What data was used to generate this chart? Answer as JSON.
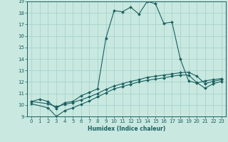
{
  "xlabel": "Humidex (Indice chaleur)",
  "ylabel": "",
  "xlim": [
    -0.5,
    23.5
  ],
  "ylim": [
    9,
    19
  ],
  "xticks": [
    0,
    1,
    2,
    3,
    4,
    5,
    6,
    7,
    8,
    9,
    10,
    11,
    12,
    13,
    14,
    15,
    16,
    17,
    18,
    19,
    20,
    21,
    22,
    23
  ],
  "yticks": [
    9,
    10,
    11,
    12,
    13,
    14,
    15,
    16,
    17,
    18,
    19
  ],
  "background_color": "#c8e8e0",
  "grid_color": "#a8d4cc",
  "line_color": "#1a6060",
  "line1_x": [
    0,
    1,
    2,
    3,
    4,
    5,
    6,
    7,
    8,
    9,
    10,
    11,
    12,
    13,
    14,
    15,
    16,
    17,
    18,
    19,
    20,
    21,
    22,
    23
  ],
  "line1_y": [
    10.3,
    10.5,
    10.3,
    9.7,
    10.2,
    10.3,
    10.8,
    11.1,
    11.4,
    15.8,
    18.2,
    18.1,
    18.5,
    17.9,
    19.0,
    18.8,
    17.1,
    17.2,
    14.0,
    12.1,
    11.9,
    12.1,
    12.2,
    12.3
  ],
  "line2_x": [
    0,
    2,
    3,
    4,
    5,
    6,
    7,
    8,
    9,
    10,
    11,
    12,
    13,
    14,
    15,
    16,
    17,
    18,
    19,
    20,
    21,
    22,
    23
  ],
  "line2_y": [
    10.3,
    10.1,
    9.85,
    10.05,
    10.2,
    10.45,
    10.7,
    11.0,
    11.35,
    11.65,
    11.85,
    12.05,
    12.2,
    12.4,
    12.5,
    12.6,
    12.7,
    12.8,
    12.85,
    12.5,
    11.85,
    12.05,
    12.2
  ],
  "line3_x": [
    0,
    2,
    3,
    4,
    5,
    6,
    7,
    8,
    9,
    10,
    11,
    12,
    13,
    14,
    15,
    16,
    17,
    18,
    19,
    20,
    21,
    22,
    23
  ],
  "line3_y": [
    10.1,
    9.75,
    9.0,
    9.5,
    9.75,
    10.05,
    10.35,
    10.7,
    11.05,
    11.4,
    11.6,
    11.8,
    12.0,
    12.15,
    12.25,
    12.35,
    12.5,
    12.6,
    12.6,
    11.95,
    11.45,
    11.85,
    12.05
  ]
}
